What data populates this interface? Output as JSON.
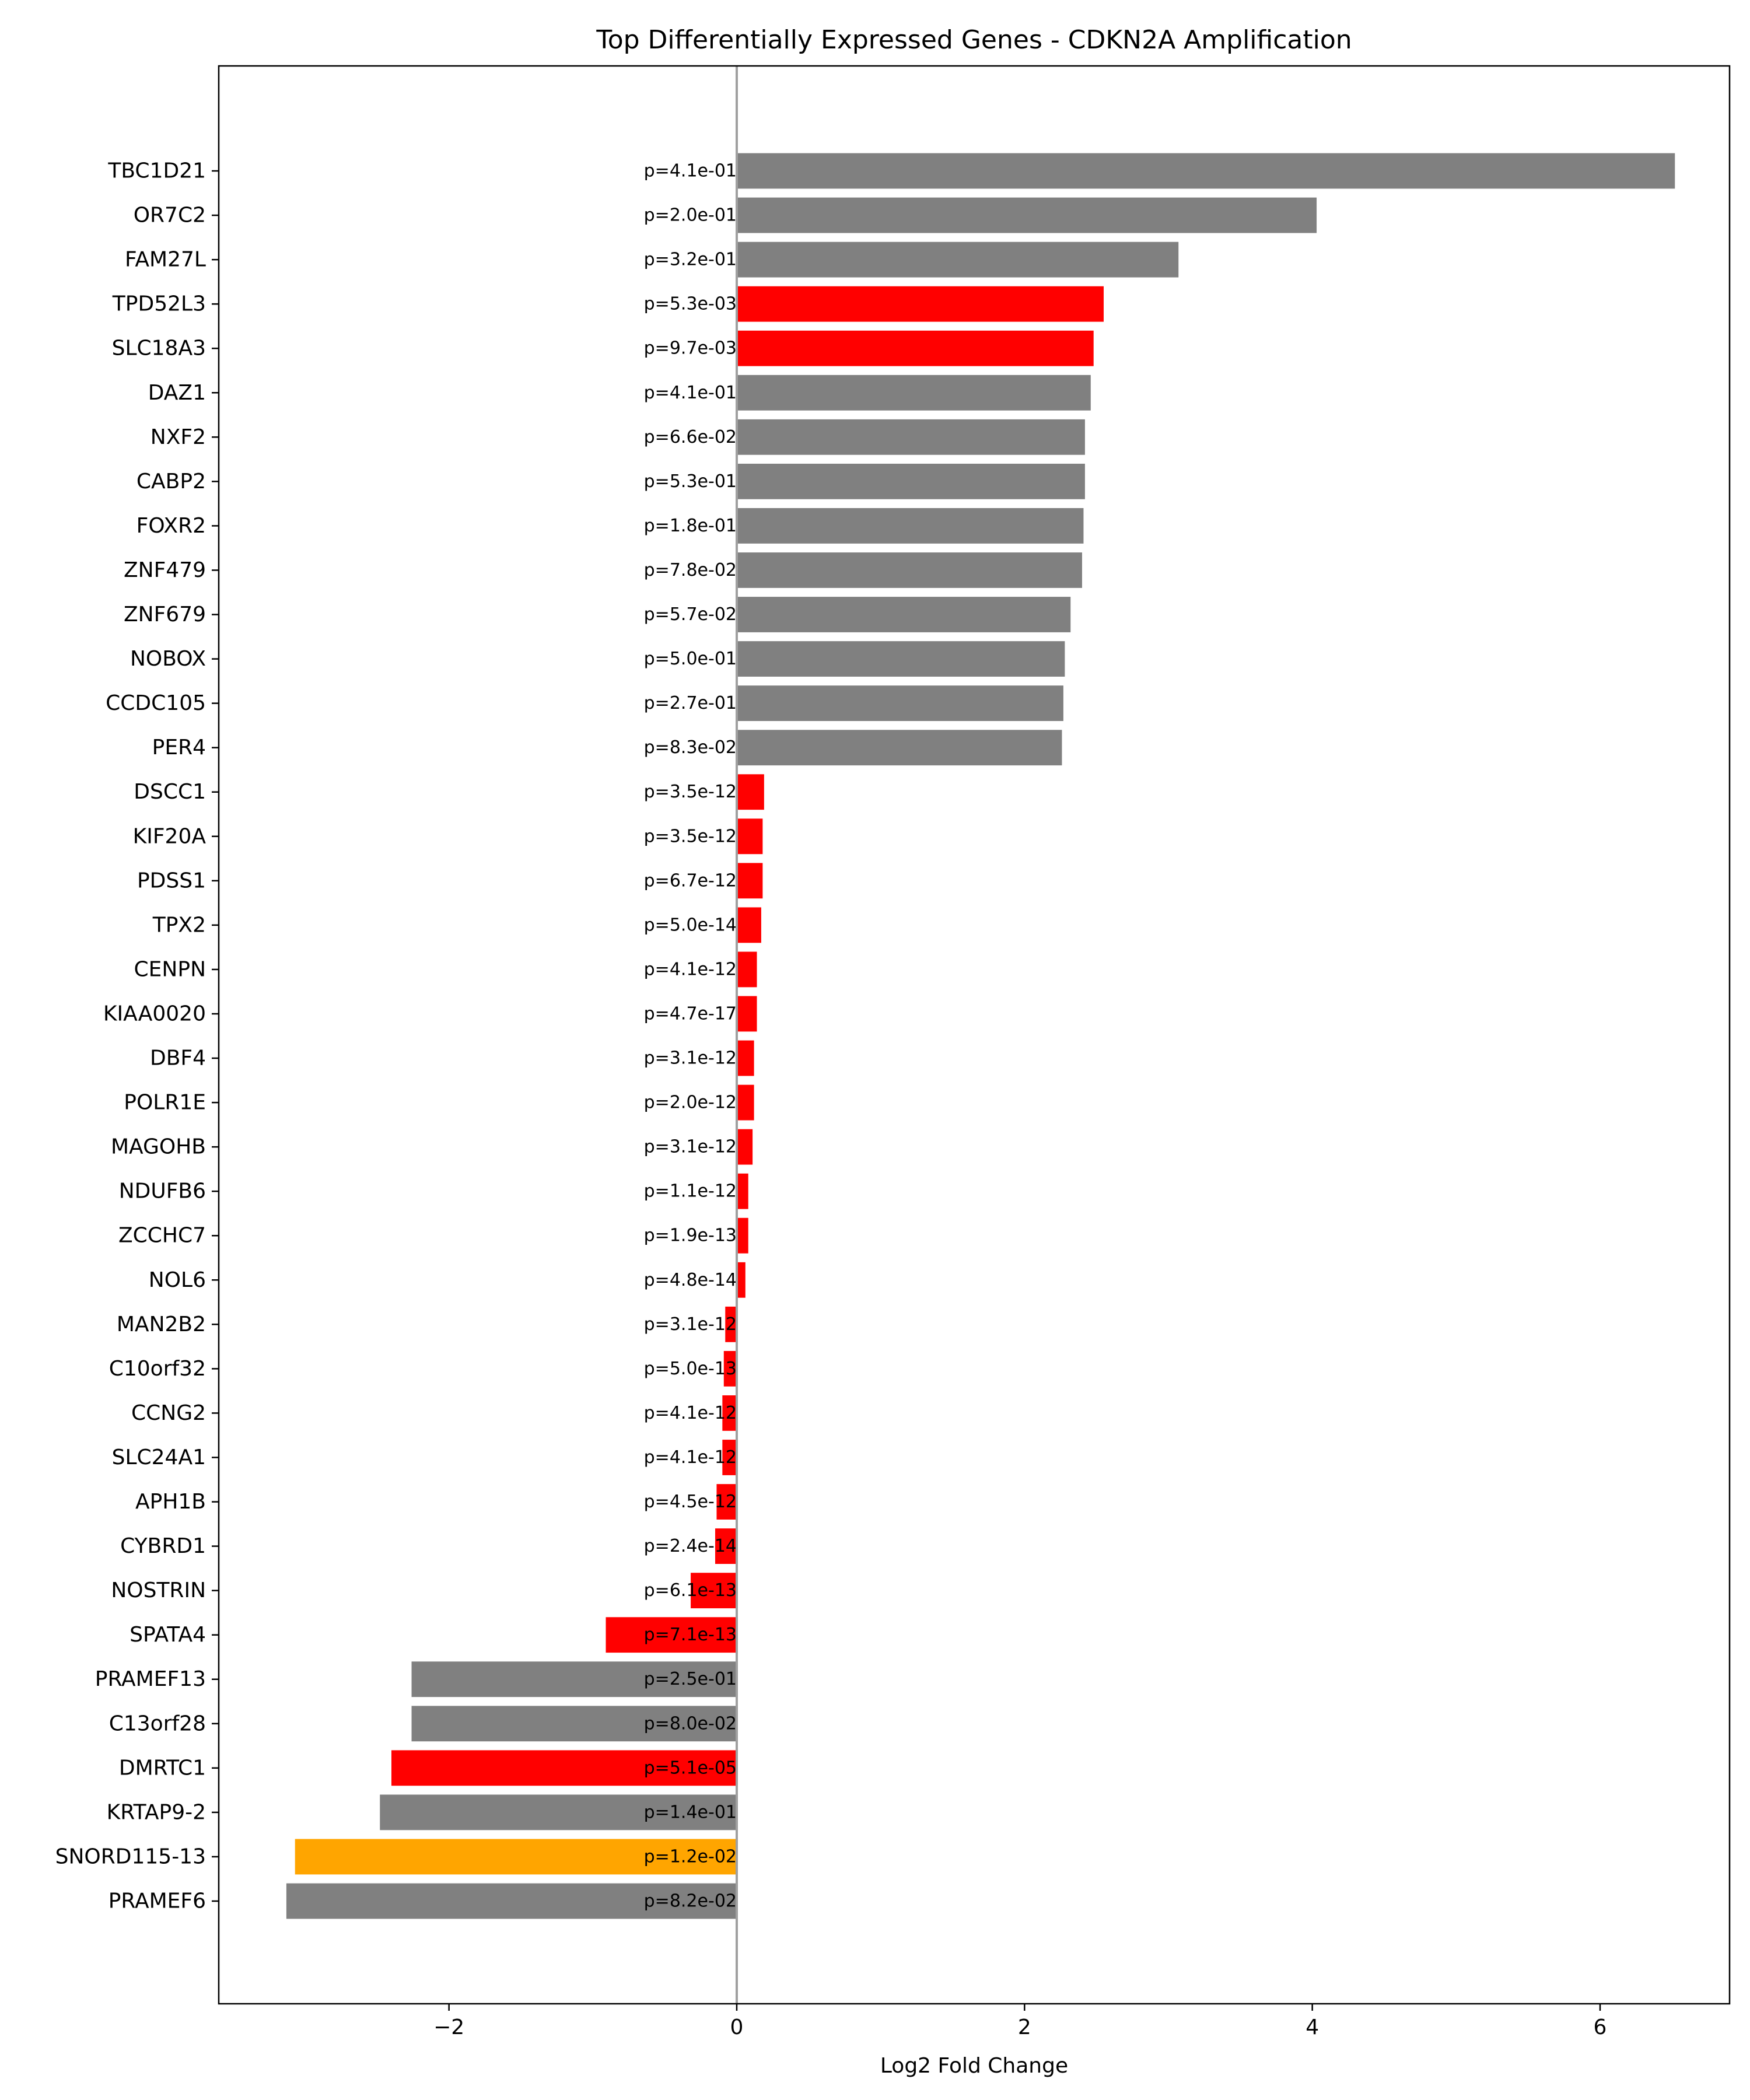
{
  "chart_data": {
    "type": "bar",
    "orientation": "horizontal",
    "title": "Top Differentially Expressed Genes - CDKN2A Amplification",
    "xlabel": "Log2 Fold Change",
    "ylabel": "",
    "xlim": [
      -3.6,
      6.9
    ],
    "xticks": [
      -2,
      0,
      2,
      4,
      6
    ],
    "xtick_labels": [
      "−2",
      "0",
      "2",
      "4",
      "6"
    ],
    "grid": false,
    "zero_line": true,
    "colors": {
      "significant": "#ff0000",
      "marginal": "#ffa500",
      "not_significant": "#808080",
      "zero_line": "#a0a0a0"
    },
    "categories": [
      "TBC1D21",
      "OR7C2",
      "FAM27L",
      "TPD52L3",
      "SLC18A3",
      "DAZ1",
      "NXF2",
      "CABP2",
      "FOXR2",
      "ZNF479",
      "ZNF679",
      "NOBOX",
      "CCDC105",
      "PER4",
      "DSCC1",
      "KIF20A",
      "PDSS1",
      "TPX2",
      "CENPN",
      "KIAA0020",
      "DBF4",
      "POLR1E",
      "MAGOHB",
      "NDUFB6",
      "ZCCHC7",
      "NOL6",
      "MAN2B2",
      "C10orf32",
      "CCNG2",
      "SLC24A1",
      "APH1B",
      "CYBRD1",
      "NOSTRIN",
      "SPATA4",
      "PRAMEF13",
      "C13orf28",
      "DMRTC1",
      "KRTAP9-2",
      "SNORD115-13",
      "PRAMEF6"
    ],
    "values": [
      6.52,
      4.03,
      3.07,
      2.55,
      2.48,
      2.46,
      2.42,
      2.42,
      2.41,
      2.4,
      2.32,
      2.28,
      2.27,
      2.26,
      0.19,
      0.18,
      0.18,
      0.17,
      0.14,
      0.14,
      0.12,
      0.12,
      0.11,
      0.08,
      0.08,
      0.06,
      -0.08,
      -0.09,
      -0.1,
      -0.1,
      -0.14,
      -0.15,
      -0.32,
      -0.91,
      -2.26,
      -2.26,
      -2.4,
      -2.48,
      -3.07,
      -3.13
    ],
    "p_labels": [
      "p=4.1e-01",
      "p=2.0e-01",
      "p=3.2e-01",
      "p=5.3e-03",
      "p=9.7e-03",
      "p=4.1e-01",
      "p=6.6e-02",
      "p=5.3e-01",
      "p=1.8e-01",
      "p=7.8e-02",
      "p=5.7e-02",
      "p=5.0e-01",
      "p=2.7e-01",
      "p=8.3e-02",
      "p=3.5e-12",
      "p=3.5e-12",
      "p=6.7e-12",
      "p=5.0e-14",
      "p=4.1e-12",
      "p=4.7e-17",
      "p=3.1e-12",
      "p=2.0e-12",
      "p=3.1e-12",
      "p=1.1e-12",
      "p=1.9e-13",
      "p=4.8e-14",
      "p=3.1e-12",
      "p=5.0e-13",
      "p=4.1e-12",
      "p=4.1e-12",
      "p=4.5e-12",
      "p=2.4e-14",
      "p=6.1e-13",
      "p=7.1e-13",
      "p=2.5e-01",
      "p=8.0e-02",
      "p=5.1e-05",
      "p=1.4e-01",
      "p=1.2e-02",
      "p=8.2e-02"
    ],
    "bar_colors": [
      "#808080",
      "#808080",
      "#808080",
      "#ff0000",
      "#ff0000",
      "#808080",
      "#808080",
      "#808080",
      "#808080",
      "#808080",
      "#808080",
      "#808080",
      "#808080",
      "#808080",
      "#ff0000",
      "#ff0000",
      "#ff0000",
      "#ff0000",
      "#ff0000",
      "#ff0000",
      "#ff0000",
      "#ff0000",
      "#ff0000",
      "#ff0000",
      "#ff0000",
      "#ff0000",
      "#ff0000",
      "#ff0000",
      "#ff0000",
      "#ff0000",
      "#ff0000",
      "#ff0000",
      "#ff0000",
      "#ff0000",
      "#808080",
      "#808080",
      "#ff0000",
      "#808080",
      "#ffa500",
      "#808080"
    ]
  }
}
